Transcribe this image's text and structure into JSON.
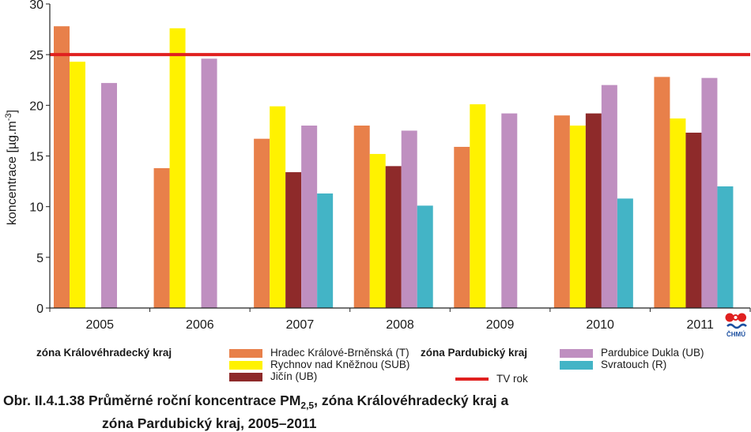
{
  "chart_data": {
    "type": "bar",
    "ylabel": "koncentrace [µg.m-3]",
    "ylabel_base": "koncentrace [µg.m",
    "ylabel_sup": "-3",
    "ylabel_end": "]",
    "ylim": [
      0,
      30
    ],
    "yticks": [
      0,
      5,
      10,
      15,
      20,
      25,
      30
    ],
    "grid": false,
    "categories": [
      "2005",
      "2006",
      "2007",
      "2008",
      "2009",
      "2010",
      "2011"
    ],
    "series": [
      {
        "name": "Hradec Králové-Brněnská (T)",
        "color": "#e8804a",
        "values": [
          27.8,
          13.8,
          16.7,
          18.0,
          15.9,
          19.0,
          22.8
        ]
      },
      {
        "name": "Rychnov nad Kněžnou (SUB)",
        "color": "#fff200",
        "values": [
          24.3,
          27.6,
          19.9,
          15.2,
          20.1,
          18.0,
          18.7
        ]
      },
      {
        "name": "Jičín (UB)",
        "color": "#8e2a2a",
        "values": [
          null,
          null,
          13.4,
          14.0,
          null,
          19.2,
          17.3
        ]
      },
      {
        "name": "Pardubice Dukla (UB)",
        "color": "#bf8fc0",
        "values": [
          22.2,
          24.6,
          18.0,
          17.5,
          19.2,
          22.0,
          22.7
        ]
      },
      {
        "name": "Svratouch (R)",
        "color": "#43b4c6",
        "values": [
          null,
          null,
          11.3,
          10.1,
          null,
          10.8,
          12.0
        ]
      }
    ],
    "reference_line": {
      "name": "TV rok",
      "value": 25,
      "color": "#e0201f"
    },
    "legend_placement": "bottom"
  },
  "legend": {
    "zone1": "zóna Královéhradecký kraj",
    "zone2": "zóna Pardubický kraj"
  },
  "caption": {
    "prefix": "Obr. II.4.1.38  Průměrné roční koncentrace PM",
    "sub": "2,5",
    "suffix": ", zóna Královéhradecký kraj a",
    "line2": "zóna Pardubický kraj, 2005–2011"
  },
  "logo": {
    "text": "ČHMÚ",
    "icon": "chmu-logo-icon"
  }
}
